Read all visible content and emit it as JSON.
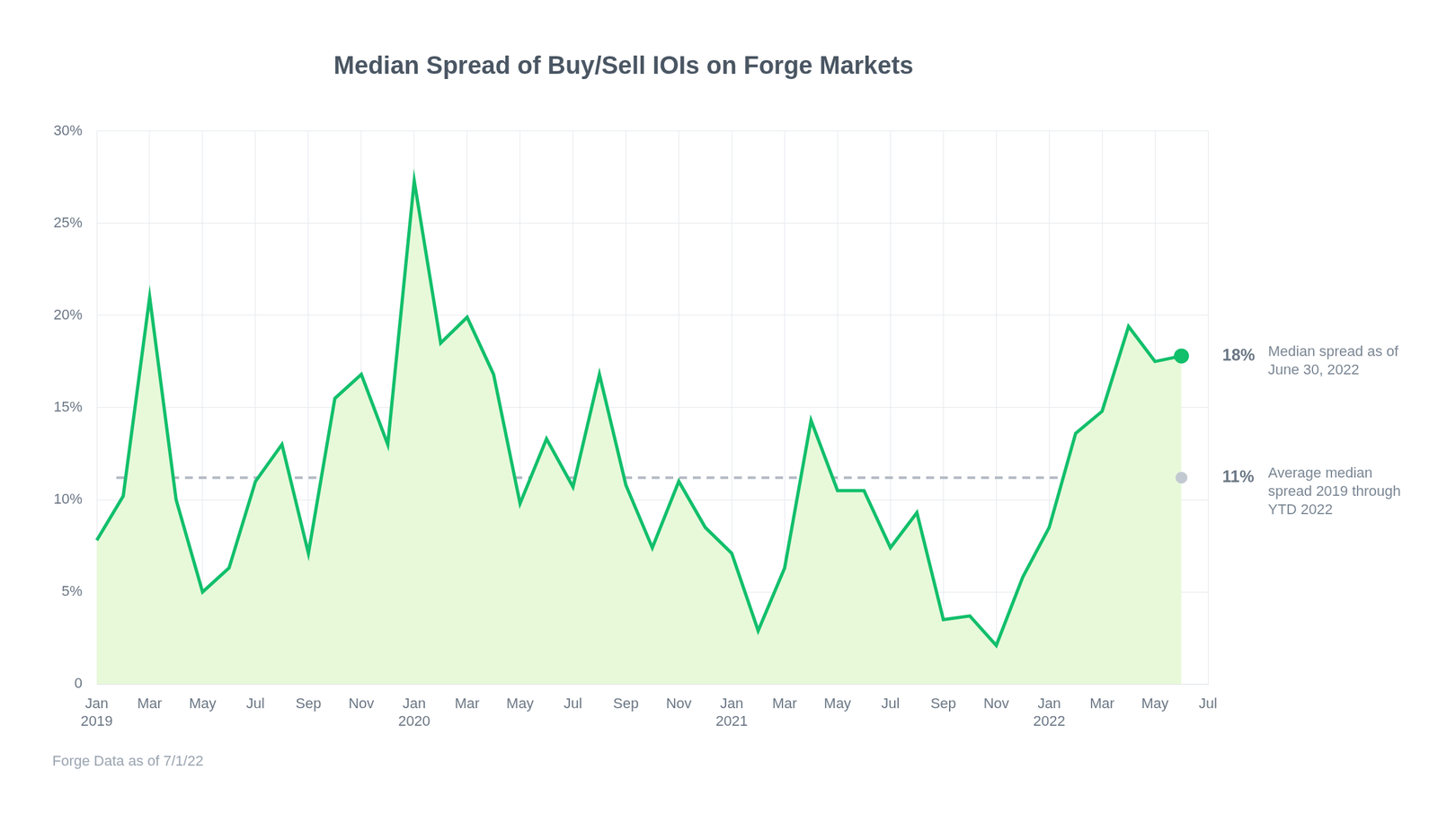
{
  "chart_data": {
    "type": "line",
    "title": "Median Spread of Buy/Sell IOIs on Forge Markets",
    "categories": [
      "Jan 2019",
      null,
      "Mar",
      null,
      "May",
      null,
      "Jul",
      null,
      "Sep",
      null,
      "Nov",
      null,
      "Jan 2020",
      null,
      "Mar",
      null,
      "May",
      null,
      "Jul",
      null,
      "Sep",
      null,
      "Nov",
      null,
      "Jan 2021",
      null,
      "Mar",
      null,
      "May",
      null,
      "Jul",
      null,
      "Sep",
      null,
      "Nov",
      null,
      "Jan 2022",
      null,
      "Mar",
      null,
      "May",
      null,
      "Jul"
    ],
    "values": [
      7.8,
      10.2,
      21,
      10,
      5,
      6.3,
      11,
      13,
      7.1,
      15.5,
      16.8,
      13,
      27.3,
      18.5,
      19.9,
      16.8,
      9.8,
      13.3,
      10.7,
      16.8,
      10.8,
      7.4,
      11,
      8.5,
      7.1,
      2.9,
      6.3,
      14.3,
      10.5,
      10.5,
      7.4,
      9.3,
      3.5,
      3.7,
      2.1,
      5.8,
      8.5,
      13.6,
      14.8,
      19.4,
      17.5,
      17.8,
      null
    ],
    "color": "#12bf6b",
    "ylim": [
      0,
      30
    ],
    "yticks": [
      0,
      {
        "value": 5,
        "label": "5%"
      },
      {
        "value": 10,
        "label": "10%"
      },
      {
        "value": 15,
        "label": "15%"
      },
      {
        "value": 20,
        "label": "20%"
      },
      {
        "value": 25,
        "label": "25%"
      },
      {
        "value": 30,
        "label": "30%"
      }
    ],
    "grid": true,
    "reference_line": {
      "value": 11.2,
      "label": "11%",
      "text": "Average median spread 2019 through YTD 2022",
      "line_style": "dashed"
    },
    "annotations": [
      {
        "label": "18%",
        "text": "Median spread as of June 30, 2022"
      }
    ],
    "source": "Forge Data as of 7/1/22"
  }
}
